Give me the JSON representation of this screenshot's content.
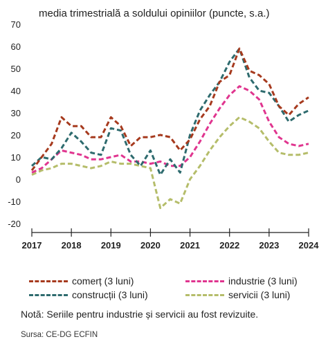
{
  "chart_data": {
    "type": "line",
    "title": "media trimestrială a soldului opiniilor (puncte, s.a.)",
    "xlabel": "",
    "ylabel": "",
    "ylim": [
      -20,
      70
    ],
    "yticks": [
      -20,
      -10,
      0,
      10,
      20,
      30,
      40,
      50,
      60,
      70
    ],
    "xlim": [
      2017,
      2024
    ],
    "xticks": [
      "2017",
      "2018",
      "2019",
      "2020",
      "2021",
      "2022",
      "2023",
      "2024"
    ],
    "grid": false,
    "legend_position": "bottom",
    "series": [
      {
        "name": "comerț (3 luni)",
        "color": "#a63a1e",
        "dash": "dashed",
        "x": [
          2017.0,
          2017.25,
          2017.5,
          2017.75,
          2018.0,
          2018.25,
          2018.5,
          2018.75,
          2019.0,
          2019.25,
          2019.5,
          2019.75,
          2020.0,
          2020.25,
          2020.5,
          2020.75,
          2021.0,
          2021.25,
          2021.5,
          2021.75,
          2022.0,
          2022.25,
          2022.5,
          2022.75,
          2023.0,
          2023.25,
          2023.5,
          2023.75,
          2024.0
        ],
        "values": [
          4,
          10,
          16,
          28,
          24,
          24,
          19,
          19,
          28,
          24,
          15,
          19,
          19,
          20,
          19,
          13,
          18,
          27,
          33,
          44,
          47,
          59,
          49,
          47,
          43,
          33,
          29,
          34,
          37
        ]
      },
      {
        "name": "industrie (3 luni)",
        "color": "#e0358f",
        "dash": "dashed",
        "x": [
          2017.0,
          2017.25,
          2017.5,
          2017.75,
          2018.0,
          2018.25,
          2018.5,
          2018.75,
          2019.0,
          2019.25,
          2019.5,
          2019.75,
          2020.0,
          2020.25,
          2020.5,
          2020.75,
          2021.0,
          2021.25,
          2021.5,
          2021.75,
          2022.0,
          2022.25,
          2022.5,
          2022.75,
          2023.0,
          2023.25,
          2023.5,
          2023.75,
          2024.0
        ],
        "values": [
          3,
          5,
          9,
          13,
          12,
          11,
          9,
          9,
          10,
          11,
          8,
          8,
          7,
          8,
          6,
          6,
          10,
          17,
          25,
          32,
          38,
          42,
          40,
          36,
          26,
          19,
          16,
          15,
          16
        ]
      },
      {
        "name": "construcții (3 luni)",
        "color": "#2e6b6e",
        "dash": "dashed",
        "x": [
          2017.0,
          2017.25,
          2017.5,
          2017.75,
          2018.0,
          2018.25,
          2018.5,
          2018.75,
          2019.0,
          2019.25,
          2019.5,
          2019.75,
          2020.0,
          2020.25,
          2020.5,
          2020.75,
          2021.0,
          2021.25,
          2021.5,
          2021.75,
          2022.0,
          2022.25,
          2022.5,
          2022.75,
          2023.0,
          2023.25,
          2023.5,
          2023.75,
          2024.0
        ],
        "values": [
          6,
          10,
          9,
          14,
          21,
          17,
          12,
          11,
          23,
          22,
          11,
          6,
          13,
          2,
          9,
          3,
          20,
          31,
          38,
          44,
          53,
          59,
          46,
          40,
          39,
          33,
          26,
          29,
          31
        ]
      },
      {
        "name": "servicii (3 luni)",
        "color": "#b5bd6a",
        "dash": "dashed",
        "x": [
          2017.0,
          2017.25,
          2017.5,
          2017.75,
          2018.0,
          2018.25,
          2018.5,
          2018.75,
          2019.0,
          2019.25,
          2019.5,
          2019.75,
          2020.0,
          2020.25,
          2020.5,
          2020.75,
          2021.0,
          2021.25,
          2021.5,
          2021.75,
          2022.0,
          2022.25,
          2022.5,
          2022.75,
          2023.0,
          2023.25,
          2023.5,
          2023.75,
          2024.0
        ],
        "values": [
          2,
          4,
          5,
          7,
          7,
          6,
          5,
          6,
          8,
          7,
          7,
          6,
          5,
          -13,
          -9,
          -11,
          0,
          6,
          13,
          19,
          24,
          28,
          26,
          23,
          17,
          12,
          11,
          11,
          12
        ]
      }
    ]
  },
  "note": "Notă: Seriile pentru industrie și servicii au fost revizuite.",
  "source": "Sursa: CE-DG ECFIN"
}
